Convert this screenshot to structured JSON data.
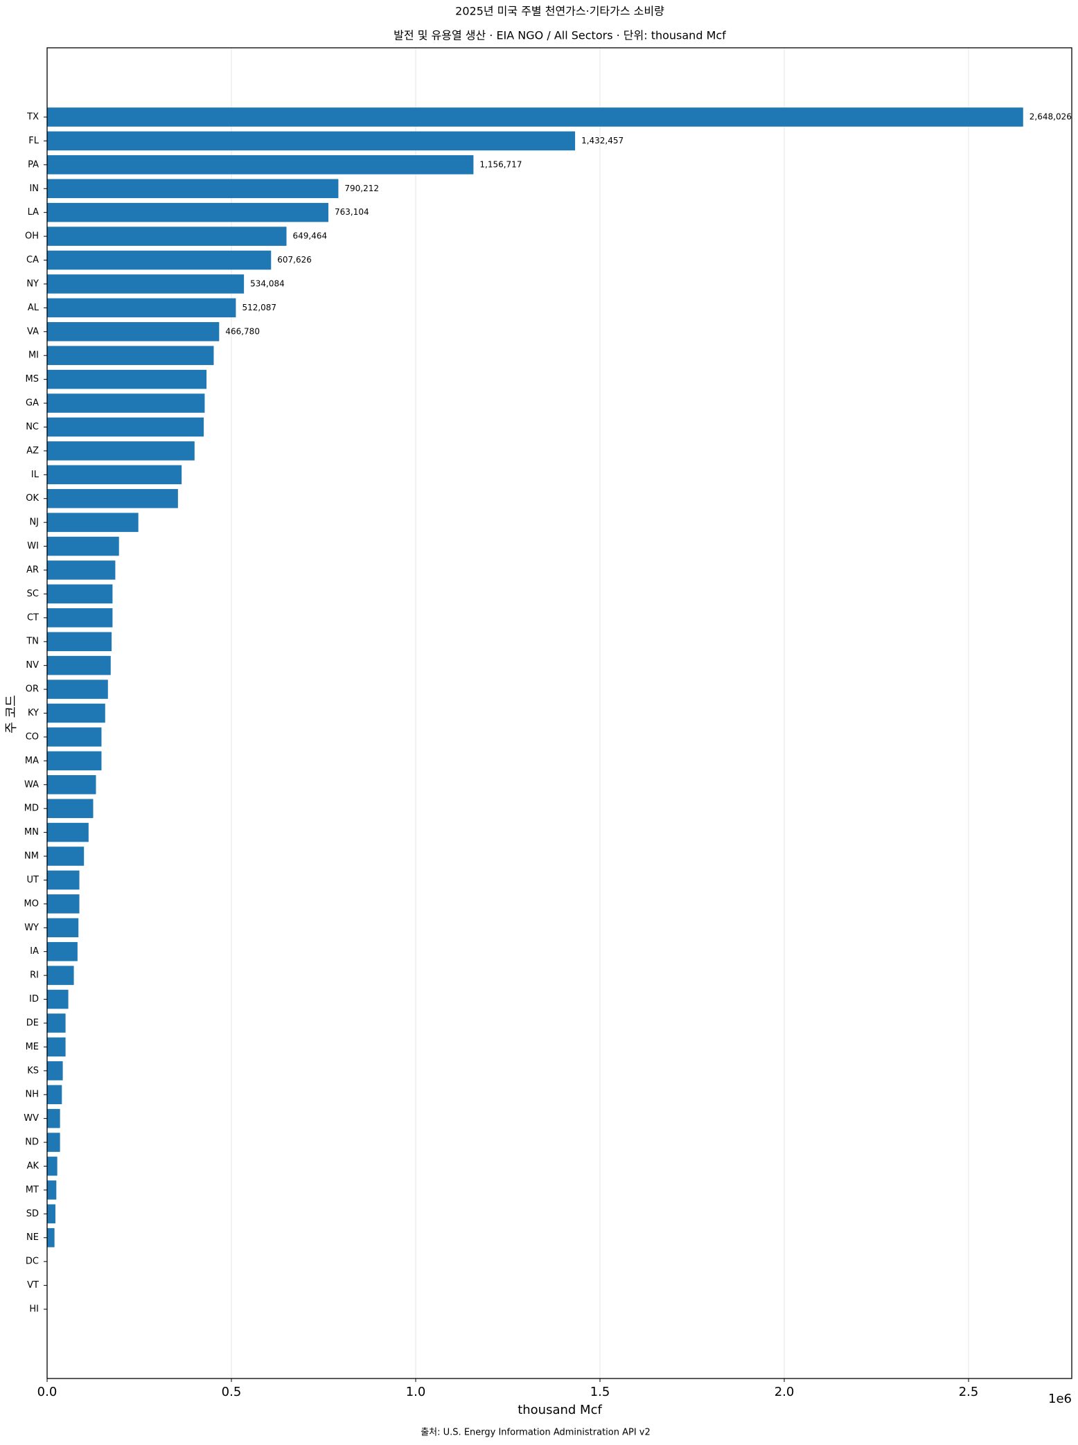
{
  "chart_data": {
    "type": "barh",
    "title": "2025년 미국 주별 천연가스·기타가스 소비량",
    "subtitle": "발전 및 유용열 생산 · EIA NGO / All Sectors · 단위: thousand Mcf",
    "x_label": "thousand Mcf",
    "y_label": "주 코드",
    "x_offset_label": "1e6",
    "source": "출처: U.S. Energy Information Administration API v2",
    "color": "#1f77b4",
    "grid": true,
    "categories": [
      "TX",
      "FL",
      "PA",
      "IN",
      "LA",
      "OH",
      "CA",
      "NY",
      "AL",
      "VA",
      "MI",
      "MS",
      "GA",
      "NC",
      "AZ",
      "IL",
      "OK",
      "NJ",
      "WI",
      "AR",
      "SC",
      "CT",
      "TN",
      "NV",
      "OR",
      "KY",
      "CO",
      "MA",
      "WA",
      "MD",
      "MN",
      "NM",
      "UT",
      "MO",
      "WY",
      "IA",
      "RI",
      "ID",
      "DE",
      "ME",
      "KS",
      "NH",
      "WV",
      "ND",
      "AK",
      "MT",
      "SD",
      "NE",
      "DC",
      "VT",
      "HI"
    ],
    "values": [
      2648026,
      1432457,
      1156717,
      790212,
      763104,
      649464,
      607626,
      534084,
      512087,
      466780,
      452000,
      432500,
      427500,
      425000,
      400000,
      365000,
      355000,
      247500,
      195000,
      185000,
      177500,
      177500,
      175000,
      172500,
      165000,
      157500,
      147500,
      147500,
      132500,
      125000,
      112500,
      100000,
      87500,
      87500,
      85000,
      82500,
      72500,
      57500,
      50000,
      50000,
      42500,
      40000,
      35000,
      35000,
      27500,
      25000,
      22500,
      20000,
      0,
      0,
      0
    ],
    "value_labels": [
      "2,648,026",
      "1,432,457",
      "1,156,717",
      "790,212",
      "763,104",
      "649,464",
      "607,626",
      "534,084",
      "512,087",
      "466,780",
      null,
      null,
      null,
      null,
      null,
      null,
      null,
      null,
      null,
      null,
      null,
      null,
      null,
      null,
      null,
      null,
      null,
      null,
      null,
      null,
      null,
      null,
      null,
      null,
      null,
      null,
      null,
      null,
      null,
      null,
      null,
      null,
      null,
      null,
      null,
      null,
      null,
      null,
      null,
      null,
      null
    ],
    "xlim": [
      0,
      2780000
    ],
    "xticks": [
      {
        "value": 0,
        "label": "0.0"
      },
      {
        "value": 500000,
        "label": "0.5"
      },
      {
        "value": 1000000,
        "label": "1.0"
      },
      {
        "value": 1500000,
        "label": "1.5"
      },
      {
        "value": 2000000,
        "label": "2.0"
      },
      {
        "value": 2500000,
        "label": "2.5"
      }
    ]
  }
}
